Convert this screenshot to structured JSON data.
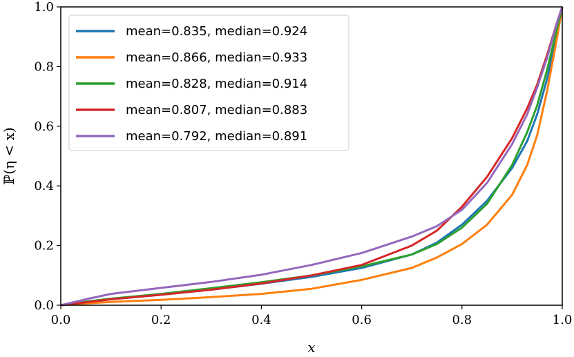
{
  "chart_data": {
    "type": "line",
    "xlabel": "x",
    "ylabel": "ℙ(η < x)",
    "xlim": [
      0.0,
      1.0
    ],
    "ylim": [
      0.0,
      1.0
    ],
    "xticks": [
      "0.0",
      "0.2",
      "0.4",
      "0.6",
      "0.8",
      "1.0"
    ],
    "yticks": [
      "0.0",
      "0.2",
      "0.4",
      "0.6",
      "0.8",
      "1.0"
    ],
    "grid": false,
    "legend_position": "top-left",
    "series": [
      {
        "name": "mean=0.835, median=0.924",
        "color": "#1f77b4",
        "x": [
          0.0,
          0.05,
          0.1,
          0.2,
          0.3,
          0.4,
          0.5,
          0.6,
          0.7,
          0.75,
          0.8,
          0.85,
          0.9,
          0.93,
          0.95,
          0.97,
          0.99,
          1.0
        ],
        "y": [
          0.0,
          0.01,
          0.02,
          0.035,
          0.052,
          0.072,
          0.095,
          0.125,
          0.17,
          0.21,
          0.27,
          0.35,
          0.46,
          0.55,
          0.64,
          0.76,
          0.91,
          1.0
        ]
      },
      {
        "name": "mean=0.866, median=0.933",
        "color": "#ff7f0e",
        "x": [
          0.0,
          0.05,
          0.1,
          0.2,
          0.3,
          0.4,
          0.5,
          0.6,
          0.7,
          0.75,
          0.8,
          0.85,
          0.9,
          0.93,
          0.95,
          0.97,
          0.99,
          1.0
        ],
        "y": [
          0.0,
          0.006,
          0.011,
          0.018,
          0.027,
          0.038,
          0.055,
          0.085,
          0.125,
          0.16,
          0.205,
          0.27,
          0.37,
          0.47,
          0.57,
          0.72,
          0.9,
          1.0
        ]
      },
      {
        "name": "mean=0.828, median=0.914",
        "color": "#2ca02c",
        "x": [
          0.0,
          0.05,
          0.1,
          0.2,
          0.3,
          0.4,
          0.5,
          0.6,
          0.7,
          0.75,
          0.8,
          0.85,
          0.9,
          0.93,
          0.95,
          0.97,
          0.99,
          1.0
        ],
        "y": [
          0.0,
          0.012,
          0.022,
          0.038,
          0.057,
          0.077,
          0.1,
          0.13,
          0.17,
          0.205,
          0.26,
          0.34,
          0.47,
          0.58,
          0.67,
          0.79,
          0.93,
          1.0
        ]
      },
      {
        "name": "mean=0.807, median=0.883",
        "color": "#d62728",
        "x": [
          0.0,
          0.05,
          0.1,
          0.2,
          0.3,
          0.4,
          0.5,
          0.6,
          0.7,
          0.75,
          0.8,
          0.85,
          0.9,
          0.93,
          0.95,
          0.97,
          0.99,
          1.0
        ],
        "y": [
          0.0,
          0.01,
          0.02,
          0.035,
          0.052,
          0.073,
          0.1,
          0.135,
          0.2,
          0.25,
          0.33,
          0.43,
          0.56,
          0.66,
          0.74,
          0.84,
          0.95,
          1.0
        ]
      },
      {
        "name": "mean=0.792, median=0.891",
        "color": "#9467bd",
        "x": [
          0.0,
          0.05,
          0.1,
          0.2,
          0.3,
          0.4,
          0.5,
          0.6,
          0.7,
          0.75,
          0.8,
          0.85,
          0.9,
          0.93,
          0.95,
          0.97,
          0.99,
          1.0
        ],
        "y": [
          0.0,
          0.02,
          0.038,
          0.058,
          0.078,
          0.102,
          0.135,
          0.175,
          0.23,
          0.265,
          0.32,
          0.41,
          0.54,
          0.64,
          0.73,
          0.83,
          0.95,
          1.0
        ]
      }
    ]
  }
}
